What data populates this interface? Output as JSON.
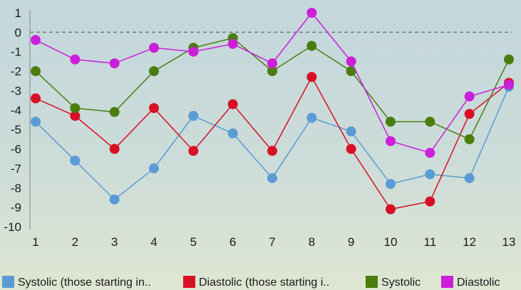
{
  "chart_data": {
    "type": "line",
    "x": [
      1,
      2,
      3,
      4,
      5,
      6,
      7,
      8,
      9,
      10,
      11,
      12,
      13
    ],
    "ylim": [
      -10,
      1
    ],
    "yticks": [
      1,
      0,
      -1,
      -2,
      -3,
      -4,
      -5,
      -6,
      -7,
      -8,
      -9,
      -10
    ],
    "reference_line": 0,
    "grid": false,
    "legend_position": "bottom",
    "series": [
      {
        "name": "Systolic (those starting in..",
        "color": "#5b9bd5",
        "values": [
          -4.6,
          -6.6,
          -8.6,
          -7.0,
          -4.3,
          -5.2,
          -7.5,
          -4.4,
          -5.1,
          -7.8,
          -7.3,
          -7.5,
          -2.8
        ]
      },
      {
        "name": "Diastolic (those starting i..",
        "color": "#d81024",
        "values": [
          -3.4,
          -4.3,
          -6.0,
          -3.9,
          -6.1,
          -3.7,
          -6.1,
          -2.3,
          -6.0,
          -9.1,
          -8.7,
          -4.2,
          -2.6
        ]
      },
      {
        "name": "Systolic",
        "color": "#4a7d0e",
        "values": [
          -2.0,
          -3.9,
          -4.1,
          -2.0,
          -0.8,
          -0.3,
          -2.0,
          -0.7,
          -2.0,
          -4.6,
          -4.6,
          -5.5,
          -1.4
        ]
      },
      {
        "name": "Diastolic",
        "color": "#cc1fd9",
        "values": [
          -0.4,
          -1.4,
          -1.6,
          -0.8,
          -1.0,
          -0.6,
          -1.6,
          1.0,
          -1.5,
          -5.6,
          -6.2,
          -3.3,
          -2.7
        ]
      }
    ]
  }
}
